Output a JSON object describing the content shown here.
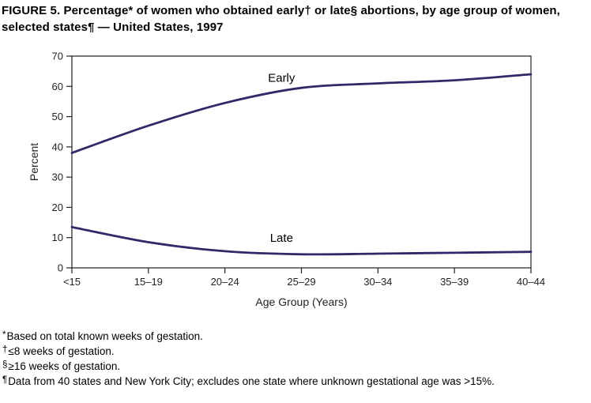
{
  "title": "FIGURE 5. Percentage* of women who obtained early† or late§ abortions, by age group of women, selected states¶ — United States, 1997",
  "chart_data": {
    "type": "line",
    "title": "",
    "categories": [
      "<15",
      "15–19",
      "20–24",
      "25–29",
      "30–34",
      "35–39",
      "40–44"
    ],
    "series": [
      {
        "name": "Early",
        "values": [
          38,
          47,
          54.5,
          59.5,
          61,
          62,
          64
        ],
        "label_pos": {
          "xi": 2.74,
          "yv": 61.5
        }
      },
      {
        "name": "Late",
        "values": [
          13.5,
          8.5,
          5.5,
          4.5,
          4.7,
          5,
          5.3
        ],
        "label_pos": {
          "xi": 2.74,
          "yv": 8.6
        }
      }
    ],
    "xlabel": "Age Group (Years)",
    "ylabel": "Percent",
    "ylim": [
      0,
      70
    ],
    "ytick_step": 10,
    "grid": false,
    "legend": "inline-labels",
    "frame": "box",
    "line_color": "#2e2a68",
    "axis_color": "#231f20"
  },
  "footnotes": [
    {
      "marker": "*",
      "text": "Based on total known weeks of gestation."
    },
    {
      "marker": "†",
      "text": "≤8 weeks of gestation."
    },
    {
      "marker": "§",
      "text": "≥16 weeks of gestation."
    },
    {
      "marker": "¶",
      "text": "Data from 40 states and New York City; excludes one state where unknown gestational age was >15%."
    }
  ]
}
